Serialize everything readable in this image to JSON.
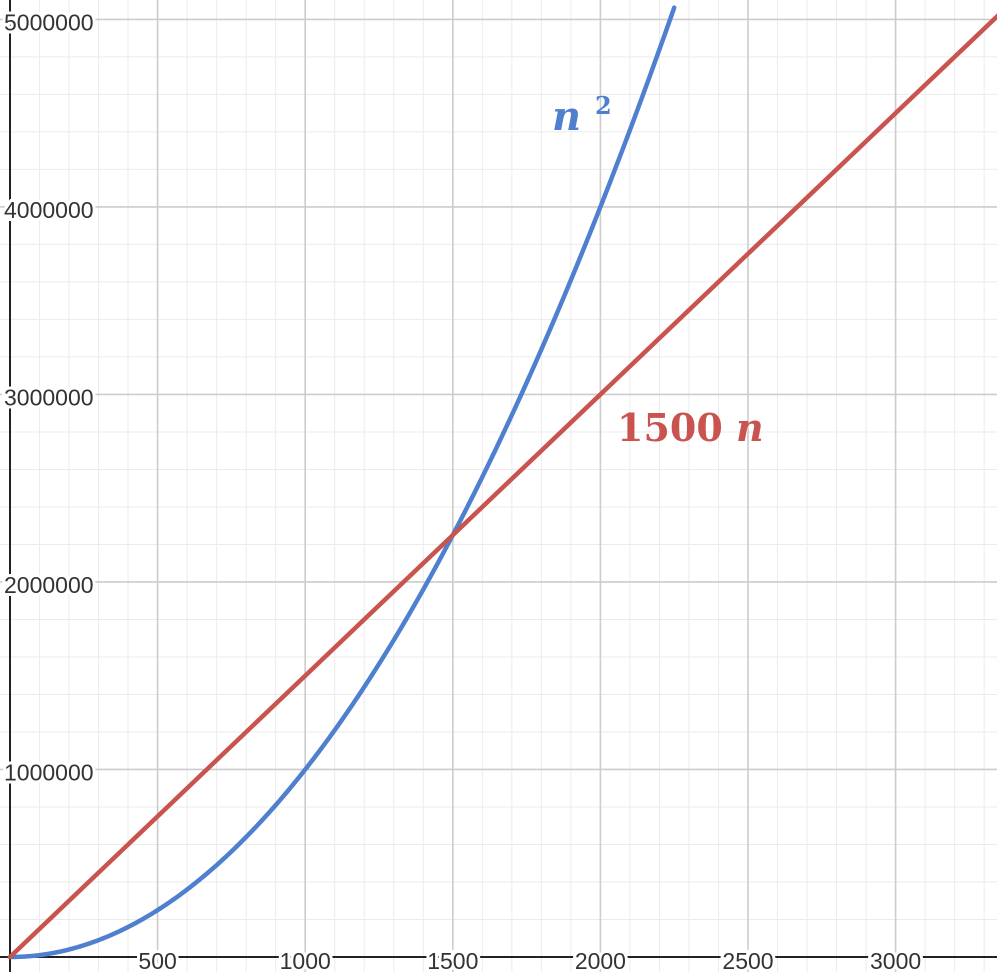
{
  "chart_data": {
    "type": "line",
    "title": "",
    "xlabel": "",
    "ylabel": "",
    "xlim": [
      0,
      3350
    ],
    "ylim": [
      0,
      5100000
    ],
    "grid": true,
    "x_major_step": 500,
    "x_minor_step": 100,
    "y_major_step": 1000000,
    "y_minor_step": 200000,
    "x_tick_labels": [
      "500",
      "1000",
      "1500",
      "2000",
      "2500",
      "3000"
    ],
    "x_tick_values": [
      500,
      1000,
      1500,
      2000,
      2500,
      3000
    ],
    "y_tick_labels": [
      "1000000",
      "2000000",
      "3000000",
      "4000000",
      "5000000"
    ],
    "y_tick_values": [
      1000000,
      2000000,
      3000000,
      4000000,
      5000000
    ],
    "series": [
      {
        "formula": "n^2",
        "label_base": "n",
        "label_sup": "2",
        "color": "#4f7fcf",
        "x": [
          0,
          250,
          500,
          750,
          1000,
          1250,
          1500,
          1750,
          2000,
          2250
        ],
        "y": [
          0,
          62500,
          250000,
          562500,
          1000000,
          1562500,
          2250000,
          3062500,
          4000000,
          5062500
        ]
      },
      {
        "formula": "1500n",
        "label": "1500n",
        "color": "#c9534f",
        "x": [
          0,
          500,
          1000,
          1500,
          2000,
          2500,
          3000,
          3350
        ],
        "y": [
          0,
          750000,
          1500000,
          2250000,
          3000000,
          3750000,
          4500000,
          5025000
        ]
      }
    ]
  }
}
